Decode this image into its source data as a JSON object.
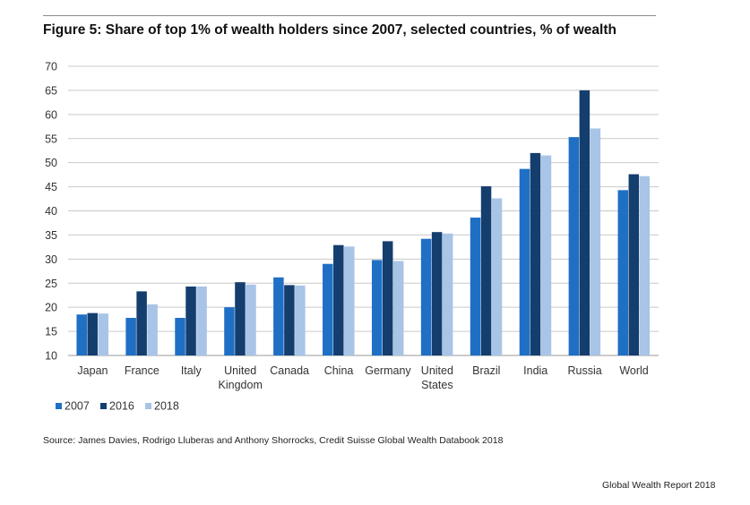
{
  "header": {
    "title": "Figure 5: Share of top 1% of wealth holders since 2007, selected countries, % of wealth"
  },
  "chart_data": {
    "type": "bar",
    "title": "Figure 5: Share of top 1% of wealth holders since 2007, selected countries, % of wealth",
    "xlabel": "",
    "ylabel": "",
    "ylim": [
      10,
      70
    ],
    "yticks": [
      10,
      15,
      20,
      25,
      30,
      35,
      40,
      45,
      50,
      55,
      60,
      65,
      70
    ],
    "grid": true,
    "legend_position": "bottom-left",
    "categories": [
      [
        "Japan"
      ],
      [
        "France"
      ],
      [
        "Italy"
      ],
      [
        "United",
        "Kingdom"
      ],
      [
        "Canada"
      ],
      [
        "China"
      ],
      [
        "Germany"
      ],
      [
        "United",
        "States"
      ],
      [
        "Brazil"
      ],
      [
        "India"
      ],
      [
        "Russia"
      ],
      [
        "World"
      ]
    ],
    "series": [
      {
        "name": "2007",
        "color": "#1f6fc4",
        "values": [
          18.5,
          17.8,
          17.8,
          20.0,
          26.2,
          29.0,
          29.8,
          34.2,
          38.6,
          48.7,
          55.3,
          44.3
        ]
      },
      {
        "name": "2016",
        "color": "#143e6e",
        "values": [
          18.8,
          23.3,
          24.3,
          25.2,
          24.6,
          32.9,
          33.7,
          35.6,
          45.1,
          52.0,
          65.0,
          47.6
        ]
      },
      {
        "name": "2018",
        "color": "#a8c4e6",
        "values": [
          18.7,
          20.6,
          24.3,
          24.7,
          24.5,
          32.6,
          29.6,
          35.3,
          42.6,
          51.5,
          57.1,
          47.2
        ]
      }
    ]
  },
  "footer": {
    "source": "Source: James Davies, Rodrigo Lluberas and Anthony Shorrocks, Credit Suisse Global Wealth Databook 2018",
    "brand": "Global Wealth Report 2018"
  }
}
